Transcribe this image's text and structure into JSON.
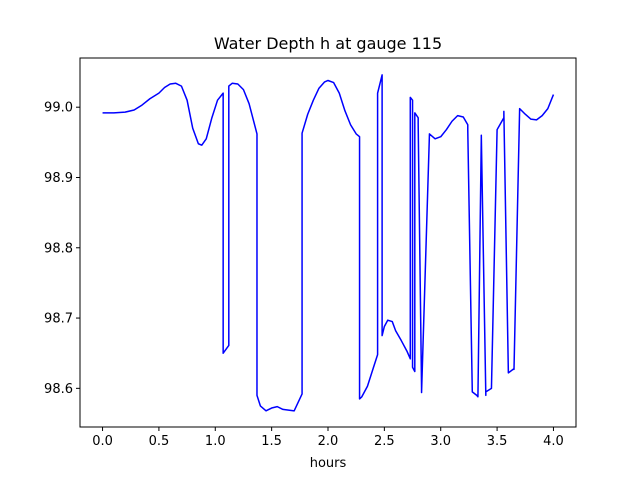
{
  "chart_data": {
    "type": "line",
    "title": "Water Depth h at gauge 115",
    "xlabel": "hours",
    "ylabel": "",
    "xlim": [
      -0.2,
      4.2
    ],
    "ylim": [
      98.545,
      99.07
    ],
    "x_ticks": [
      0.0,
      0.5,
      1.0,
      1.5,
      2.0,
      2.5,
      3.0,
      3.5,
      4.0
    ],
    "x_tick_labels": [
      "0.0",
      "0.5",
      "1.0",
      "1.5",
      "2.0",
      "2.5",
      "3.0",
      "3.5",
      "4.0"
    ],
    "y_ticks": [
      98.6,
      98.7,
      98.8,
      98.9,
      99.0
    ],
    "y_tick_labels": [
      "98.6",
      "98.7",
      "98.8",
      "98.9",
      "99.0"
    ],
    "grid": false,
    "legend": "none",
    "colors": {
      "line": "#0000ff",
      "axes": "#000000",
      "background": "#ffffff"
    },
    "series": [
      {
        "x": [
          0.0,
          0.1,
          0.2,
          0.28,
          0.35,
          0.42,
          0.5,
          0.55,
          0.6,
          0.65,
          0.7,
          0.75,
          0.8,
          0.85,
          0.88,
          0.92,
          0.97,
          1.02,
          1.07,
          1.07,
          1.12,
          1.12,
          1.15,
          1.2,
          1.25,
          1.3,
          1.37,
          1.37,
          1.4,
          1.45,
          1.5,
          1.55,
          1.6,
          1.7,
          1.77,
          1.77,
          1.82,
          1.87,
          1.92,
          1.97,
          2.0,
          2.05,
          2.1,
          2.15,
          2.2,
          2.25,
          2.28,
          2.28,
          2.3,
          2.35,
          2.4,
          2.44,
          2.44,
          2.48,
          2.48,
          2.5,
          2.53,
          2.57,
          2.6,
          2.65,
          2.7,
          2.73,
          2.73,
          2.75,
          2.75,
          2.77,
          2.77,
          2.8,
          2.8,
          2.83,
          2.83,
          2.9,
          2.95,
          3.0,
          3.05,
          3.1,
          3.15,
          3.2,
          3.24,
          3.24,
          3.28,
          3.32,
          3.33,
          3.36,
          3.36,
          3.4,
          3.4,
          3.45,
          3.5,
          3.56,
          3.56,
          3.6,
          3.65,
          3.65,
          3.7,
          3.75,
          3.8,
          3.85,
          3.9,
          3.95,
          4.0
        ],
        "y": [
          98.992,
          98.992,
          98.993,
          98.996,
          99.003,
          99.012,
          99.02,
          99.028,
          99.033,
          99.034,
          99.03,
          99.01,
          98.97,
          98.948,
          98.946,
          98.955,
          98.985,
          99.01,
          99.02,
          98.65,
          98.661,
          99.03,
          99.034,
          99.033,
          99.025,
          99.005,
          98.962,
          98.59,
          98.575,
          98.568,
          98.572,
          98.574,
          98.57,
          98.568,
          98.592,
          98.963,
          98.99,
          99.01,
          99.027,
          99.036,
          99.038,
          99.035,
          99.02,
          98.995,
          98.975,
          98.962,
          98.958,
          98.585,
          98.588,
          98.603,
          98.628,
          98.648,
          99.02,
          99.046,
          98.675,
          98.688,
          98.697,
          98.695,
          98.682,
          98.668,
          98.653,
          98.642,
          99.014,
          99.01,
          98.63,
          98.624,
          98.992,
          98.985,
          98.976,
          98.6,
          98.594,
          98.962,
          98.955,
          98.958,
          98.968,
          98.98,
          98.988,
          98.986,
          98.975,
          98.967,
          98.595,
          98.59,
          98.588,
          98.958,
          98.96,
          98.59,
          98.595,
          98.6,
          98.968,
          98.985,
          98.994,
          98.622,
          98.628,
          98.627,
          98.998,
          98.99,
          98.983,
          98.982,
          98.988,
          98.998,
          99.018
        ]
      }
    ]
  }
}
